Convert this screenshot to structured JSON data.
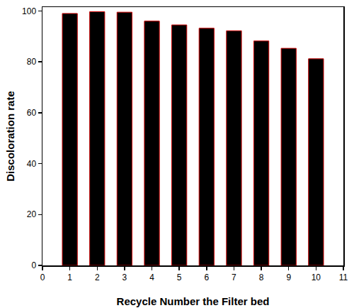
{
  "chart_data": {
    "type": "bar",
    "x_label": "Recycle Number the Filter bed",
    "y_label": "Discoloration rate",
    "x": [
      1,
      2,
      3,
      4,
      5,
      6,
      7,
      8,
      9,
      10
    ],
    "values": [
      99.0,
      99.7,
      99.5,
      96.0,
      94.5,
      93.2,
      92.2,
      88.2,
      85.3,
      81.2
    ],
    "color": "#000000",
    "xlim": [
      0,
      11
    ],
    "xticks": [
      0,
      1,
      2,
      3,
      4,
      5,
      6,
      7,
      8,
      9,
      10,
      11
    ],
    "ylim": [
      0,
      101.5
    ],
    "yticks": [
      0,
      20,
      40,
      60,
      80,
      100
    ],
    "grid": false
  }
}
